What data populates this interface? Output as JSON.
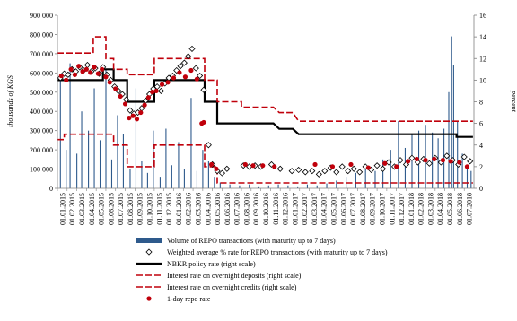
{
  "chart_data": {
    "type": "bar",
    "title": "",
    "ylabel": "thousands of KGS",
    "ylabel_right": "percent",
    "ylim": [
      0,
      900000
    ],
    "ylim_right": [
      0,
      16
    ],
    "y_ticks": [
      "0",
      "100 000",
      "200 000",
      "300 000",
      "400 000",
      "500 000",
      "600 000",
      "700 000",
      "800 000",
      "900 000"
    ],
    "y_ticks_right": [
      "0",
      "2",
      "4",
      "6",
      "8",
      "10",
      "12",
      "14",
      "16"
    ],
    "x_ticks": [
      "01.01.2015",
      "01.02.2015",
      "01.03.2015",
      "01.04.2015",
      "01.05.2015",
      "01.06.2015",
      "01.07.2015",
      "01.08.2015",
      "01.09.2015",
      "01.10.2015",
      "01.11.2015",
      "01.12.2015",
      "01.01.2016",
      "01.02.2016",
      "01.03.2016",
      "01.04.2016",
      "01.05.2016",
      "01.06.2016",
      "01.07.2016",
      "01.08.2016",
      "01.09.2016",
      "01.10.2016",
      "01.11.2016",
      "01.12.2016",
      "01.01.2017",
      "01.02.2017",
      "01.03.2017",
      "01.04.2017",
      "01.05.2017",
      "01.06.2017",
      "01.07.2017",
      "01.08.2017",
      "01.09.2017",
      "01.10.2017",
      "01.11.2017",
      "01.12.2017",
      "01.01.2018",
      "01.02.2018",
      "01.03.2018",
      "01.04.2018",
      "01.05.2018",
      "01.06.2018",
      "01.07.2018"
    ],
    "legend_position": "bottom",
    "series": [
      {
        "name": "Volume of REPO transactions (with maturity up to 7 days)",
        "type": "bar",
        "axis": "left",
        "color": "#2e5a8c",
        "points": [
          [
            0.3,
            560000
          ],
          [
            0.9,
            200000
          ],
          [
            1.3,
            650000
          ],
          [
            2.0,
            180000
          ],
          [
            2.5,
            400000
          ],
          [
            3.2,
            300000
          ],
          [
            3.8,
            520000
          ],
          [
            4.4,
            250000
          ],
          [
            5.0,
            620000
          ],
          [
            5.6,
            150000
          ],
          [
            6.2,
            380000
          ],
          [
            6.8,
            280000
          ],
          [
            7.5,
            100000
          ],
          [
            8.1,
            520000
          ],
          [
            8.7,
            140000
          ],
          [
            9.3,
            80000
          ],
          [
            9.9,
            300000
          ],
          [
            10.6,
            60000
          ],
          [
            11.2,
            310000
          ],
          [
            11.8,
            120000
          ],
          [
            12.5,
            240000
          ],
          [
            13.1,
            100000
          ],
          [
            13.8,
            470000
          ],
          [
            14.4,
            90000
          ],
          [
            15.0,
            200000
          ],
          [
            15.6,
            140000
          ],
          [
            16.2,
            60000
          ],
          [
            16.8,
            30000
          ],
          [
            17.8,
            20000
          ],
          [
            18.8,
            15000
          ],
          [
            19.8,
            20000
          ],
          [
            20.8,
            10000
          ],
          [
            21.8,
            15000
          ],
          [
            22.8,
            20000
          ],
          [
            23.8,
            15000
          ],
          [
            24.8,
            10000
          ],
          [
            25.8,
            20000
          ],
          [
            26.8,
            15000
          ],
          [
            27.8,
            25000
          ],
          [
            28.8,
            40000
          ],
          [
            29.8,
            60000
          ],
          [
            30.8,
            80000
          ],
          [
            31.8,
            120000
          ],
          [
            32.8,
            90000
          ],
          [
            33.6,
            150000
          ],
          [
            34.4,
            200000
          ],
          [
            35.2,
            350000
          ],
          [
            35.9,
            210000
          ],
          [
            36.6,
            280000
          ],
          [
            37.3,
            300000
          ],
          [
            38.0,
            330000
          ],
          [
            38.7,
            290000
          ],
          [
            39.3,
            260000
          ],
          [
            39.9,
            310000
          ],
          [
            40.4,
            500000
          ],
          [
            40.7,
            790000
          ],
          [
            40.9,
            640000
          ],
          [
            41.3,
            350000
          ],
          [
            41.8,
            180000
          ],
          [
            42.3,
            120000
          ],
          [
            42.7,
            90000
          ]
        ]
      },
      {
        "name": "Weighted average  % rate for REPO transactions (with maturity up to 7 days)",
        "type": "scatter",
        "marker": "diamond",
        "axis": "right",
        "points": [
          [
            0.3,
            10.2
          ],
          [
            0.7,
            10.6
          ],
          [
            1.1,
            10.5
          ],
          [
            1.5,
            11.0
          ],
          [
            1.9,
            10.8
          ],
          [
            2.3,
            11.2
          ],
          [
            2.7,
            10.9
          ],
          [
            3.1,
            11.4
          ],
          [
            3.5,
            10.8
          ],
          [
            3.9,
            11.1
          ],
          [
            4.3,
            10.6
          ],
          [
            4.7,
            11.2
          ],
          [
            5.1,
            10.5
          ],
          [
            5.5,
            10.0
          ],
          [
            5.9,
            9.4
          ],
          [
            6.3,
            9.0
          ],
          [
            6.7,
            8.7
          ],
          [
            7.1,
            8.2
          ],
          [
            7.5,
            7.2
          ],
          [
            7.9,
            6.9
          ],
          [
            8.3,
            7.0
          ],
          [
            8.7,
            7.4
          ],
          [
            9.1,
            8.1
          ],
          [
            9.5,
            8.7
          ],
          [
            9.9,
            9.2
          ],
          [
            10.3,
            9.4
          ],
          [
            10.7,
            9.0
          ],
          [
            11.1,
            9.7
          ],
          [
            11.5,
            10.2
          ],
          [
            11.9,
            10.4
          ],
          [
            12.3,
            10.9
          ],
          [
            12.7,
            11.3
          ],
          [
            13.1,
            11.6
          ],
          [
            13.5,
            12.2
          ],
          [
            13.9,
            12.9
          ],
          [
            14.3,
            11.1
          ],
          [
            14.7,
            10.4
          ],
          [
            15.1,
            9.1
          ],
          [
            15.6,
            4.0
          ],
          [
            16.0,
            2.2
          ],
          [
            16.5,
            1.6
          ],
          [
            17.0,
            1.4
          ],
          [
            17.5,
            1.8
          ],
          [
            19.2,
            2.1
          ],
          [
            19.8,
            2.0
          ],
          [
            20.4,
            2.1
          ],
          [
            21.0,
            2.0
          ],
          [
            22.1,
            2.2
          ],
          [
            23.0,
            1.8
          ],
          [
            24.2,
            1.6
          ],
          [
            24.9,
            1.7
          ],
          [
            25.6,
            1.5
          ],
          [
            26.3,
            1.6
          ],
          [
            27.0,
            1.3
          ],
          [
            27.6,
            1.6
          ],
          [
            28.2,
            1.9
          ],
          [
            28.8,
            1.5
          ],
          [
            29.4,
            2.0
          ],
          [
            30.0,
            1.6
          ],
          [
            30.6,
            1.8
          ],
          [
            31.2,
            1.5
          ],
          [
            31.8,
            2.0
          ],
          [
            32.4,
            1.7
          ],
          [
            33.0,
            2.1
          ],
          [
            33.6,
            1.8
          ],
          [
            34.2,
            2.4
          ],
          [
            34.8,
            2.0
          ],
          [
            35.4,
            2.6
          ],
          [
            36.0,
            2.2
          ],
          [
            36.6,
            2.8
          ],
          [
            37.2,
            2.4
          ],
          [
            37.8,
            2.7
          ],
          [
            38.4,
            2.3
          ],
          [
            39.0,
            2.8
          ],
          [
            39.6,
            2.4
          ],
          [
            40.2,
            3.0
          ],
          [
            40.8,
            2.6
          ],
          [
            41.4,
            2.2
          ],
          [
            42.0,
            2.9
          ],
          [
            42.6,
            2.5
          ]
        ]
      },
      {
        "name": "NBKR policy rate (right scale)",
        "type": "line",
        "style": "solid",
        "axis": "right",
        "color": "#000000",
        "points": [
          [
            0,
            10
          ],
          [
            4.7,
            10
          ],
          [
            4.7,
            11
          ],
          [
            5.8,
            11
          ],
          [
            5.8,
            10
          ],
          [
            7.2,
            10
          ],
          [
            7.2,
            8
          ],
          [
            10.0,
            8
          ],
          [
            10.0,
            10
          ],
          [
            15.2,
            10
          ],
          [
            15.2,
            8
          ],
          [
            16.5,
            8
          ],
          [
            16.5,
            6
          ],
          [
            22.3,
            6
          ],
          [
            22.9,
            5.5
          ],
          [
            24.3,
            5.5
          ],
          [
            24.9,
            5
          ],
          [
            41.2,
            5
          ],
          [
            41.2,
            4.75
          ],
          [
            42.9,
            4.75
          ]
        ]
      },
      {
        "name": "Interest rate on overnight deposits (right scale)",
        "type": "line",
        "style": "dashed",
        "axis": "right",
        "color": "#c0000b",
        "points": [
          [
            0,
            4.5
          ],
          [
            0.7,
            4.5
          ],
          [
            0.7,
            5
          ],
          [
            5.8,
            5
          ],
          [
            5.8,
            4
          ],
          [
            7.2,
            4
          ],
          [
            7.2,
            2
          ],
          [
            10.0,
            2
          ],
          [
            10.0,
            4
          ],
          [
            15.2,
            4
          ],
          [
            15.2,
            2
          ],
          [
            16.5,
            2
          ],
          [
            16.5,
            0.5
          ],
          [
            42.9,
            0.5
          ]
        ]
      },
      {
        "name": "Interest rate on overnight credits (right scale)",
        "type": "line",
        "style": "dashed",
        "axis": "right",
        "color": "#c0000b",
        "points": [
          [
            0,
            12.5
          ],
          [
            3.7,
            12.5
          ],
          [
            3.7,
            14
          ],
          [
            5.0,
            14
          ],
          [
            5.0,
            12
          ],
          [
            5.8,
            12
          ],
          [
            5.8,
            11
          ],
          [
            7.2,
            11
          ],
          [
            7.2,
            10.5
          ],
          [
            10.0,
            10.5
          ],
          [
            10.0,
            12
          ],
          [
            15.2,
            12
          ],
          [
            15.2,
            10
          ],
          [
            16.5,
            10
          ],
          [
            16.5,
            8
          ],
          [
            19.0,
            8
          ],
          [
            19.0,
            7.5
          ],
          [
            22.3,
            7.5
          ],
          [
            22.9,
            7
          ],
          [
            24.3,
            7
          ],
          [
            24.9,
            6.2
          ],
          [
            42.9,
            6.2
          ]
        ]
      },
      {
        "name": "1-day repo rate",
        "type": "scatter",
        "marker": "circle",
        "axis": "right",
        "color": "#c0000b",
        "points": [
          [
            0.4,
            10.4
          ],
          [
            0.9,
            10.0
          ],
          [
            1.4,
            11.0
          ],
          [
            1.8,
            10.5
          ],
          [
            2.2,
            11.3
          ],
          [
            2.6,
            10.8
          ],
          [
            3.0,
            11.0
          ],
          [
            3.4,
            10.7
          ],
          [
            3.8,
            11.2
          ],
          [
            4.2,
            10.6
          ],
          [
            4.6,
            11.0
          ],
          [
            5.0,
            10.3
          ],
          [
            5.4,
            9.8
          ],
          [
            6.0,
            9.2
          ],
          [
            6.5,
            8.5
          ],
          [
            7.0,
            7.8
          ],
          [
            7.4,
            6.5
          ],
          [
            7.8,
            6.7
          ],
          [
            8.2,
            6.4
          ],
          [
            8.6,
            7.0
          ],
          [
            9.0,
            7.7
          ],
          [
            9.4,
            8.4
          ],
          [
            9.8,
            8.9
          ],
          [
            10.2,
            9.0
          ],
          [
            10.8,
            9.6
          ],
          [
            11.4,
            9.8
          ],
          [
            12.0,
            10.2
          ],
          [
            12.6,
            10.7
          ],
          [
            13.2,
            10.3
          ],
          [
            13.8,
            10.9
          ],
          [
            14.4,
            10.1
          ],
          [
            14.9,
            6.0
          ],
          [
            15.1,
            6.1
          ],
          [
            15.9,
            2.2
          ],
          [
            16.4,
            1.8
          ],
          [
            19.4,
            2.2
          ],
          [
            20.2,
            2.1
          ],
          [
            21.2,
            2.1
          ],
          [
            22.4,
            2.0
          ],
          [
            26.6,
            2.2
          ],
          [
            28.4,
            2.0
          ],
          [
            30.3,
            2.2
          ],
          [
            32.1,
            1.9
          ],
          [
            33.8,
            2.3
          ],
          [
            35.0,
            2.0
          ],
          [
            36.2,
            2.5
          ],
          [
            37.1,
            2.7
          ],
          [
            38.0,
            2.6
          ],
          [
            38.9,
            2.7
          ],
          [
            39.8,
            2.6
          ],
          [
            40.6,
            2.5
          ],
          [
            41.5,
            2.4
          ],
          [
            42.3,
            2.0
          ]
        ]
      }
    ]
  }
}
